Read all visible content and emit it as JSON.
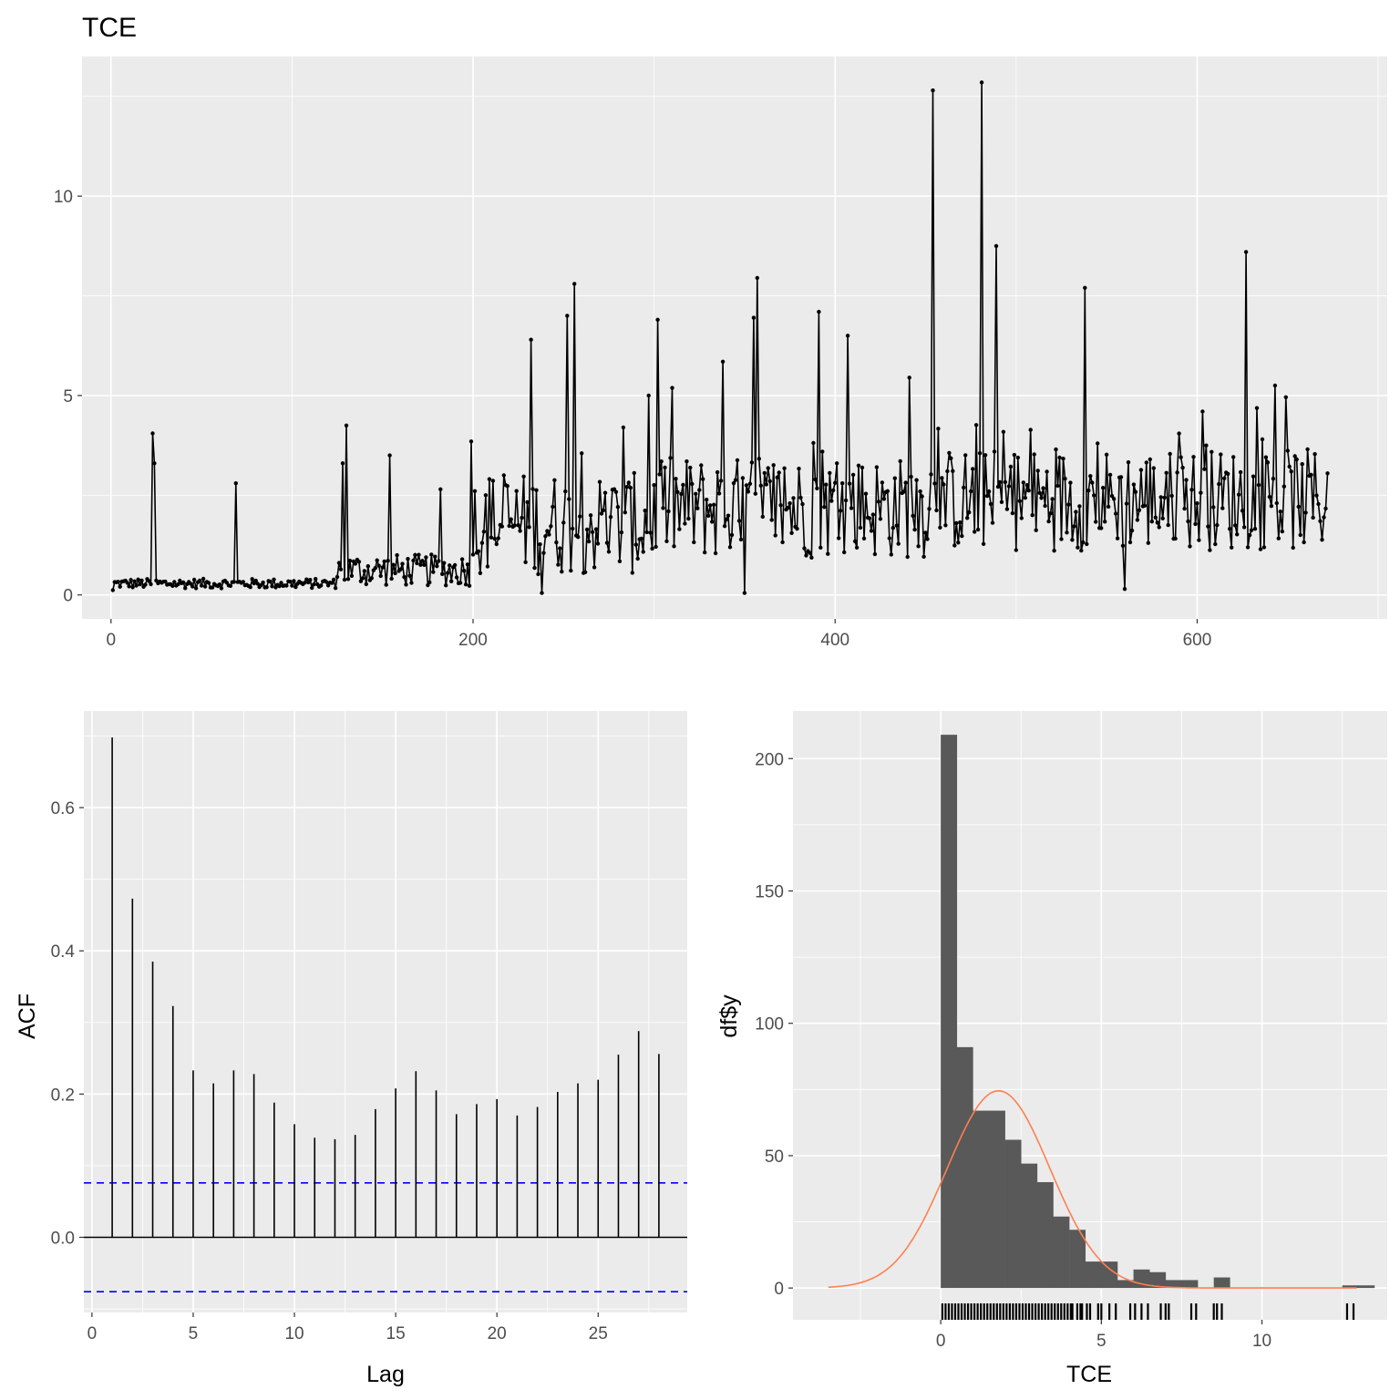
{
  "title": "TCE",
  "colors": {
    "panel": "#ebebeb",
    "grid": "#ffffff",
    "line": "#000000",
    "bar": "#595959",
    "density": "#ff7f50",
    "ci": "#0000ff"
  },
  "chart_data": [
    {
      "type": "line",
      "title": "TCE",
      "xlabel": "",
      "ylabel": "",
      "xlim": [
        -16,
        705
      ],
      "ylim": [
        -0.6,
        13.5
      ],
      "xticks": [
        "0",
        "200",
        "400",
        "600"
      ],
      "yticks": [
        "0",
        "5",
        "10"
      ],
      "points_shown": true,
      "key_points": [
        {
          "x": 1,
          "y": 0.12
        },
        {
          "x": 23,
          "y": 4.05
        },
        {
          "x": 24,
          "y": 3.3
        },
        {
          "x": 69,
          "y": 2.8
        },
        {
          "x": 128,
          "y": 3.3
        },
        {
          "x": 130,
          "y": 4.25
        },
        {
          "x": 154,
          "y": 3.5
        },
        {
          "x": 182,
          "y": 2.65
        },
        {
          "x": 199,
          "y": 3.85
        },
        {
          "x": 232,
          "y": 6.4
        },
        {
          "x": 238,
          "y": 0.05
        },
        {
          "x": 252,
          "y": 7.0
        },
        {
          "x": 256,
          "y": 7.8
        },
        {
          "x": 283,
          "y": 4.2
        },
        {
          "x": 297,
          "y": 5.0
        },
        {
          "x": 302,
          "y": 6.9
        },
        {
          "x": 338,
          "y": 5.85
        },
        {
          "x": 350,
          "y": 0.05
        },
        {
          "x": 355,
          "y": 6.95
        },
        {
          "x": 357,
          "y": 7.95
        },
        {
          "x": 391,
          "y": 7.1
        },
        {
          "x": 407,
          "y": 6.5
        },
        {
          "x": 441,
          "y": 5.45
        },
        {
          "x": 454,
          "y": 12.65
        },
        {
          "x": 481,
          "y": 12.85
        },
        {
          "x": 489,
          "y": 8.75
        },
        {
          "x": 538,
          "y": 7.7
        },
        {
          "x": 560,
          "y": 0.15
        },
        {
          "x": 627,
          "y": 8.6
        },
        {
          "x": 643,
          "y": 5.25
        },
        {
          "x": 672,
          "y": 3.05
        }
      ]
    },
    {
      "type": "bar",
      "xlabel": "Lag",
      "ylabel": "ACF",
      "xlim": [
        -0.4,
        29.4
      ],
      "ylim": [
        -0.105,
        0.735
      ],
      "xticks": [
        "0",
        "5",
        "10",
        "15",
        "20",
        "25"
      ],
      "yticks": [
        "0.0",
        "0.2",
        "0.4",
        "0.6"
      ],
      "x": [
        1,
        2,
        3,
        4,
        5,
        6,
        7,
        8,
        9,
        10,
        11,
        12,
        13,
        14,
        15,
        16,
        17,
        18,
        19,
        20,
        21,
        22,
        23,
        24,
        25,
        26,
        27,
        28
      ],
      "values": [
        0.698,
        0.473,
        0.385,
        0.323,
        0.233,
        0.215,
        0.233,
        0.228,
        0.188,
        0.158,
        0.139,
        0.137,
        0.143,
        0.179,
        0.208,
        0.232,
        0.205,
        0.172,
        0.186,
        0.193,
        0.17,
        0.182,
        0.203,
        0.215,
        0.22,
        0.255,
        0.288,
        0.256
      ],
      "ci_bounds": [
        0.076,
        -0.076
      ]
    },
    {
      "type": "bar",
      "subtype": "histogram with normal density and rug",
      "xlabel": "TCE",
      "ylabel": "df$y",
      "xlim": [
        -4.6,
        13.9
      ],
      "ylim": [
        -12,
        218
      ],
      "xticks": [
        "0",
        "5",
        "10"
      ],
      "yticks": [
        "0",
        "50",
        "100",
        "150",
        "200"
      ],
      "bin_width": 0.5,
      "bin_starts": [
        0,
        0.5,
        1,
        1.5,
        2,
        2.5,
        3,
        3.5,
        4,
        4.5,
        5,
        5.5,
        6,
        6.5,
        7,
        7.5,
        8,
        8.5,
        9,
        9.5,
        10,
        10.5,
        11,
        11.5,
        12,
        12.5,
        13
      ],
      "values": [
        209,
        91,
        67,
        67,
        56,
        47,
        40,
        27,
        22,
        10,
        10,
        3,
        7,
        6,
        3,
        3,
        0,
        4,
        0,
        0,
        0,
        0,
        0,
        0,
        0,
        1,
        1
      ],
      "density_curve": {
        "mean": 1.8,
        "sd": 1.6,
        "peak": 74.5
      },
      "rug_x": [
        0.05,
        0.15,
        0.25,
        0.35,
        0.45,
        0.55,
        0.65,
        0.75,
        0.85,
        0.95,
        1.05,
        1.15,
        1.25,
        1.35,
        1.45,
        1.55,
        1.65,
        1.75,
        1.85,
        1.95,
        2.05,
        2.15,
        2.25,
        2.35,
        2.45,
        2.55,
        2.65,
        2.75,
        2.85,
        2.95,
        3.05,
        3.15,
        3.25,
        3.35,
        3.45,
        3.55,
        3.65,
        3.75,
        3.85,
        3.95,
        4.05,
        4.1,
        4.25,
        4.35,
        4.4,
        4.55,
        4.65,
        4.9,
        5.0,
        5.25,
        5.45,
        5.9,
        6.05,
        6.25,
        6.45,
        6.85,
        7.0,
        7.1,
        7.8,
        7.95,
        8.5,
        8.6,
        8.75,
        12.65,
        12.85
      ]
    }
  ]
}
